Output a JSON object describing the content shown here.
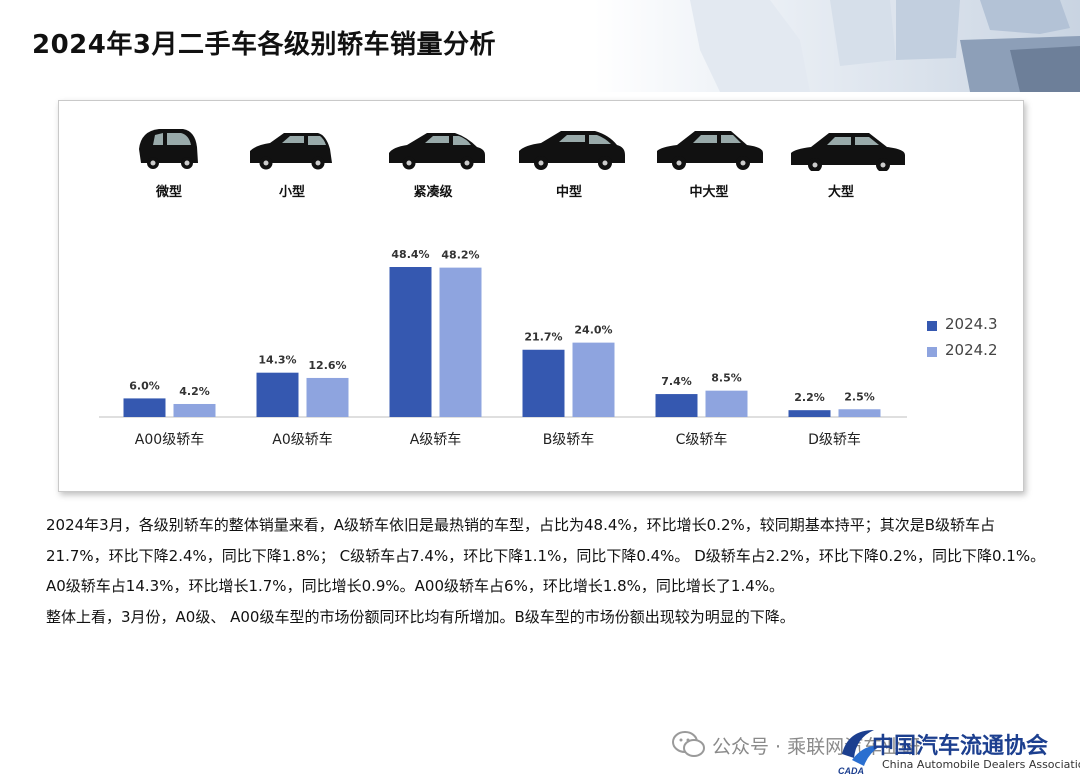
{
  "page": {
    "title": "2024年3月二手车各级别轿车销量分析"
  },
  "car_labels": [
    "微型",
    "小型",
    "紧凑级",
    "中型",
    "中大型",
    "大型"
  ],
  "colors": {
    "series_2024_3": "#3558b0",
    "series_2024_2": "#8ea4df",
    "axis": "#bfbfbf"
  },
  "chart_data": {
    "type": "bar",
    "categories": [
      "A00级轿车",
      "A0级轿车",
      "A级轿车",
      "B级轿车",
      "C级轿车",
      "D级轿车"
    ],
    "series": [
      {
        "name": "2024.3",
        "values": [
          6.0,
          14.3,
          48.4,
          21.7,
          7.4,
          2.2
        ],
        "labels": [
          "6.0%",
          "14.3%",
          "48.4%",
          "21.7%",
          "7.4%",
          "2.2%"
        ]
      },
      {
        "name": "2024.2",
        "values": [
          4.2,
          12.6,
          48.2,
          24.0,
          8.5,
          2.5
        ],
        "labels": [
          "4.2%",
          "12.6%",
          "48.2%",
          "24.0%",
          "8.5%",
          "2.5%"
        ]
      }
    ],
    "unit": "%",
    "legend_position": "right",
    "grid": false
  },
  "body": {
    "paragraph1": "2024年3月，各级别轿车的整体销量来看，A级轿车依旧是最热销的车型，占比为48.4%，环比增长0.2%，较同期基本持平；其次是B级轿车占21.7%，环比下降2.4%，同比下降1.8%； C级轿车占7.4%，环比下降1.1%，同比下降0.4%。 D级轿车占2.2%，环比下降0.2%，同比下降0.1%。 A0级轿车占14.3%，环比增长1.7%，同比增长0.9%。A00级轿车占6%，环比增长1.8%，同比增长了1.4%。",
    "paragraph2": "整体上看，3月份，A0级、 A00级车型的市场份额同环比均有所增加。B级车型的市场份额出现较为明显的下降。"
  },
  "watermark": {
    "account": "公众号 · 乘联网汽车业研",
    "org_cn": "中国汽车流通协会",
    "org_en": "China Automobile Dealers Association",
    "logo_text": "CADA"
  }
}
